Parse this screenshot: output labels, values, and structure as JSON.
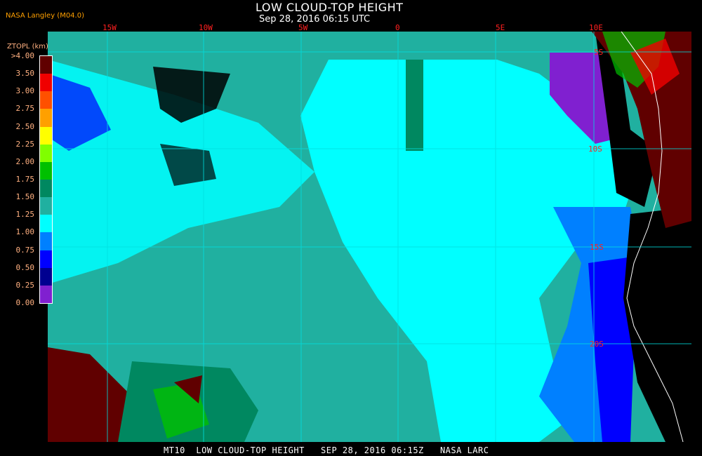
{
  "header": {
    "title": "LOW CLOUD-TOP HEIGHT",
    "subtitle": "Sep 28, 2016 06:15 UTC",
    "source": "NASA Langley (M04.0)"
  },
  "map": {
    "longitude_labels": [
      "15W",
      "10W",
      "5W",
      "0",
      "5E",
      "10E"
    ],
    "latitude_labels": [
      "5S",
      "10S",
      "15S",
      "20S"
    ],
    "coastline_color": "#ffffff",
    "grid_color": "#00e0e0"
  },
  "legend": {
    "title": "ZTOPL (km)",
    "labels": [
      ">4.00",
      "3.50",
      "3.00",
      "2.75",
      "2.50",
      "2.25",
      "2.00",
      "1.75",
      "1.50",
      "1.25",
      "1.00",
      "0.75",
      "0.50",
      "0.25",
      "0.00"
    ],
    "colors": [
      "#600000",
      "#f00000",
      "#ff5000",
      "#ffa000",
      "#ffff00",
      "#80ff00",
      "#00c000",
      "#008860",
      "#20b0a0",
      "#00ffff",
      "#0080ff",
      "#0000ff",
      "#000090",
      "#8020d0"
    ]
  },
  "footer": {
    "text": "MT10  LOW CLOUD-TOP HEIGHT   SEP 28, 2016 06:15Z   NASA LARC"
  }
}
